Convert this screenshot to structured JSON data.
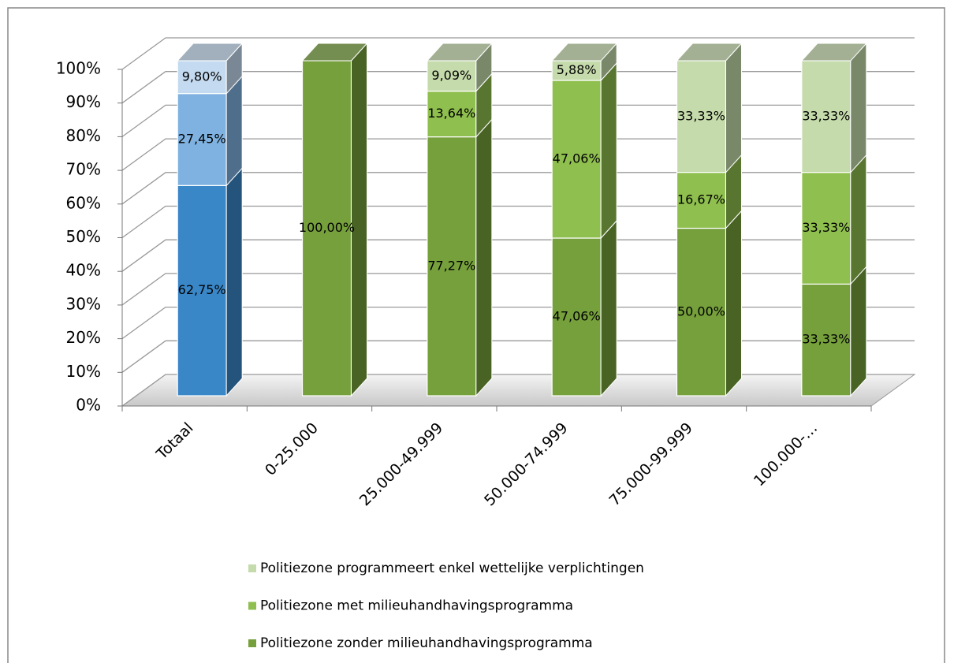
{
  "chart_data": {
    "type": "bar3d_stacked",
    "categories": [
      "Totaal",
      "0-25.000",
      "25.000-49.999",
      "50.000-74.999",
      "75.000-99.999",
      "100.000-…"
    ],
    "series": [
      {
        "name": "Politiezone zonder milieuhandhavingsprogramma",
        "colors": [
          "#3a87c8",
          "#76a03c",
          "#76a03c",
          "#76a03c",
          "#76a03c",
          "#76a03c"
        ],
        "values": [
          62.75,
          100,
          77.27,
          47.06,
          50,
          33.33
        ],
        "value_labels": [
          "62,75%",
          "100,00%",
          "77,27%",
          "47,06%",
          "50,00%",
          "33,33%"
        ]
      },
      {
        "name": "Politiezone met milieuhandhavingsprogramma",
        "colors": [
          "#7fb2e0",
          "#8fbf4e",
          "#8fbf4e",
          "#8fbf4e",
          "#8fbf4e",
          "#8fbf4e"
        ],
        "values": [
          27.45,
          0,
          13.64,
          47.06,
          16.67,
          33.33
        ],
        "value_labels": [
          "27,45%",
          null,
          "13,64%",
          "47,06%",
          "16,67%",
          "33,33%"
        ]
      },
      {
        "name": "Politiezone programmeert enkel wettelijke verplichtingen",
        "colors": [
          "#c4daf0",
          "#c5dbab",
          "#c5dbab",
          "#c5dbab",
          "#c5dbab",
          "#c5dbab"
        ],
        "values": [
          9.8,
          0,
          9.09,
          5.88,
          33.33,
          33.33
        ],
        "value_labels": [
          "9,80%",
          null,
          "9,09%",
          "5,88%",
          "33,33%",
          "33,33%"
        ]
      }
    ],
    "ylim": [
      0,
      100
    ],
    "yticks": [
      {
        "value": 0,
        "label": "0%"
      },
      {
        "value": 10,
        "label": "10%"
      },
      {
        "value": 20,
        "label": "20%"
      },
      {
        "value": 30,
        "label": "30%"
      },
      {
        "value": 40,
        "label": "40%"
      },
      {
        "value": 50,
        "label": "50%"
      },
      {
        "value": 60,
        "label": "60%"
      },
      {
        "value": 70,
        "label": "70%"
      },
      {
        "value": 80,
        "label": "80%"
      },
      {
        "value": 90,
        "label": "90%"
      },
      {
        "value": 100,
        "label": "100%"
      }
    ],
    "grid": true,
    "legend": "bottom"
  }
}
